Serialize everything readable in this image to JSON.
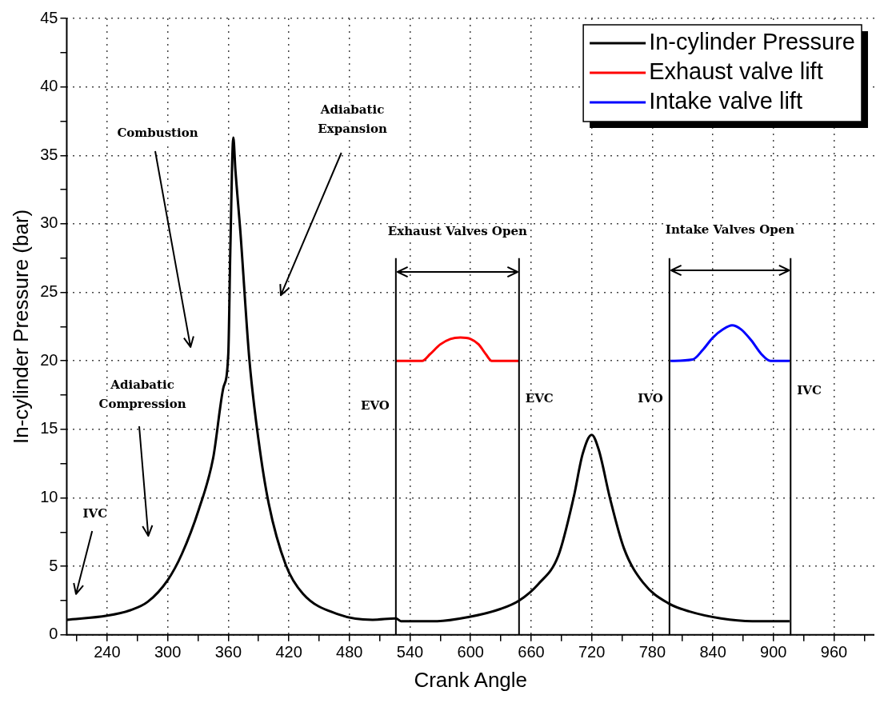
{
  "chart_data": {
    "type": "line",
    "xlabel": "Crank Angle",
    "ylabel": "In-cylinder Pressure (bar)",
    "xlim": [
      200,
      1000
    ],
    "xticks": [
      {
        "value": 210,
        "label": null
      },
      240,
      {
        "value": 270,
        "label": null
      },
      300,
      {
        "value": 330,
        "label": null
      },
      360,
      {
        "value": 390,
        "label": null
      },
      420,
      {
        "value": 450,
        "label": null
      },
      480,
      {
        "value": 510,
        "label": null
      },
      540,
      {
        "value": 570,
        "label": null
      },
      600,
      {
        "value": 630,
        "label": null
      },
      660,
      {
        "value": 690,
        "label": null
      },
      720,
      {
        "value": 750,
        "label": null
      },
      780,
      {
        "value": 810,
        "label": null
      },
      840,
      {
        "value": 870,
        "label": null
      },
      900,
      {
        "value": 930,
        "label": null
      },
      960,
      {
        "value": 990,
        "label": null
      }
    ],
    "ylim": [
      0,
      45
    ],
    "yticks": [
      0,
      {
        "value": 2.5,
        "label": null
      },
      5,
      {
        "value": 7.5,
        "label": null
      },
      10,
      {
        "value": 12.5,
        "label": null
      },
      15,
      {
        "value": 17.5,
        "label": null
      },
      20,
      {
        "value": 22.5,
        "label": null
      },
      25,
      {
        "value": 27.5,
        "label": null
      },
      30,
      {
        "value": 32.5,
        "label": null
      },
      35,
      {
        "value": 37.5,
        "label": null
      },
      40,
      {
        "value": 42.5,
        "label": null
      },
      45
    ],
    "grid": true,
    "legend": "top right",
    "marker": "none",
    "line_style": "solid",
    "series": [
      {
        "name": "In-cylinder Pressure",
        "color": "#000000",
        "x": [
          200,
          240,
          263,
          280,
          300,
          314,
          331,
          345,
          355,
          360,
          362,
          365,
          367,
          372,
          381,
          390,
          400,
          417,
          434,
          469,
          503,
          526,
          531,
          567,
          598,
          630,
          648,
          667,
          687,
          702,
          711,
          720,
          727,
          738,
          752,
          771,
          796,
          817,
          848,
          879,
          916
        ],
        "values": [
          1.1,
          1.4,
          1.8,
          2.4,
          4.0,
          5.9,
          9.2,
          12.9,
          18.0,
          20.5,
          28.0,
          36.3,
          34.0,
          29.4,
          20.0,
          14.2,
          9.6,
          5.1,
          3.0,
          1.5,
          1.1,
          1.2,
          1.0,
          1.0,
          1.3,
          1.9,
          2.5,
          3.7,
          5.8,
          10.0,
          13.2,
          14.6,
          13.5,
          10.0,
          6.3,
          3.8,
          2.3,
          1.7,
          1.2,
          1.0,
          1.0
        ]
      },
      {
        "name": "Exhaust valve lift",
        "color": "#ff0000",
        "x": [
          526,
          552,
          560,
          570,
          580,
          590,
          600,
          608,
          615,
          621,
          648
        ],
        "values": [
          20.0,
          20.0,
          20.5,
          21.2,
          21.6,
          21.7,
          21.6,
          21.2,
          20.5,
          20.0,
          20.0
        ]
      },
      {
        "name": "Intake valve lift",
        "color": "#0000ff",
        "x": [
          798,
          820,
          830,
          840,
          850,
          859,
          868,
          878,
          888,
          897,
          916
        ],
        "values": [
          20.0,
          20.1,
          20.8,
          21.7,
          22.3,
          22.6,
          22.3,
          21.5,
          20.5,
          20.0,
          20.0
        ]
      }
    ],
    "ref_lines": [
      {
        "axis": "x",
        "value": 526,
        "label": "EVO",
        "color": "#000000"
      },
      {
        "axis": "x",
        "value": 648,
        "label": "EVC",
        "color": "#000000"
      },
      {
        "axis": "x",
        "value": 797,
        "label": "IVO",
        "color": "#000000"
      },
      {
        "axis": "x",
        "value": 917,
        "label": "IVC",
        "color": "#000000"
      }
    ],
    "annotations": [
      "Combustion",
      "Adiabatic\nExpansion",
      "Adiabatic\nCompression",
      "IVC",
      "Exhaust Valves Open",
      "Intake Valves Open"
    ]
  }
}
